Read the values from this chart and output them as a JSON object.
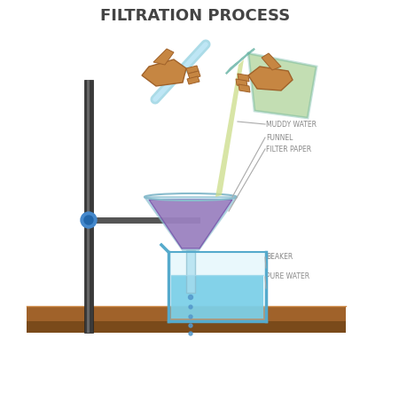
{
  "title": "FILTRATION PROCESS",
  "title_fontsize": 13,
  "title_color": "#444444",
  "background_color": "#ffffff",
  "labels": {
    "muddy_water": "MUDDY WATER",
    "funnel": "FUNNEL",
    "filter_paper": "FILTER PAPER",
    "beaker": "BEAKER",
    "pure_water": "PURE WATER"
  },
  "label_fontsize": 5.5,
  "label_color": "#888888",
  "colors": {
    "stand_pole": "#3a3a3a",
    "stand_clamp": "#4488cc",
    "stand_arm": "#555555",
    "table_top": "#a0622a",
    "table_shadow": "#7a4a1a",
    "funnel_glass": "#aaddee",
    "funnel_filter": "#9977bb",
    "funnel_stem": "#aaddee",
    "beaker_glass": "#aaddee",
    "beaker_water": "#44bbdd",
    "flask_glass": "#aaddee",
    "flask_liquid": "#ccdd88",
    "flask_outline": "#55aa99",
    "glass_rod": "#aaddee",
    "hand_skin": "#c68642",
    "hand_dark": "#a0622a",
    "drop_color": "#5599cc",
    "line_color": "#aaaaaa",
    "stream_color": "#ccdd88"
  }
}
